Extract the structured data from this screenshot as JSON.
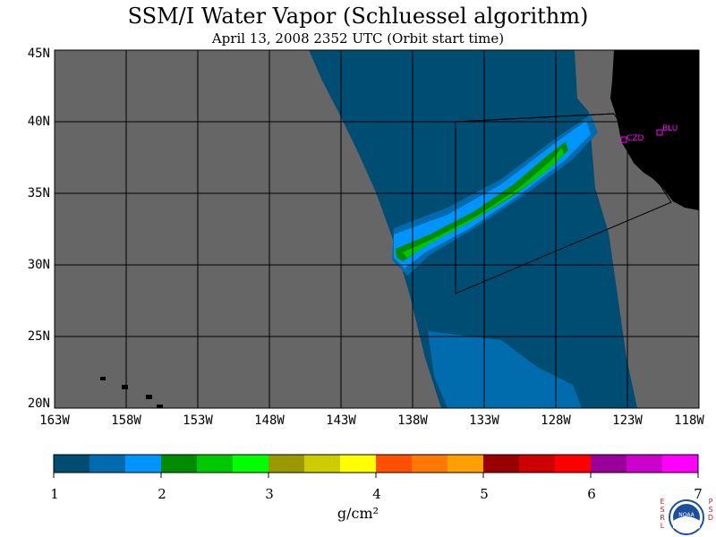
{
  "title": "SSM/I Water Vapor (Schluessel algorithm)",
  "subtitle": "April 13, 2008  2352 UTC  (Orbit start time)",
  "map": {
    "lat_labels": [
      "45N",
      "40N",
      "35N",
      "30N",
      "25N",
      "20N"
    ],
    "lon_labels": [
      "163W",
      "158W",
      "153W",
      "148W",
      "143W",
      "138W",
      "133W",
      "128W",
      "123W",
      "118W"
    ],
    "stations": [
      {
        "label": "CZD"
      },
      {
        "label": "BLU"
      }
    ],
    "colors": {
      "background_gray": "#666666",
      "land": "#000000",
      "station": "#ff00ff"
    }
  },
  "colorbar": {
    "ticks": [
      "1",
      "2",
      "3",
      "4",
      "5",
      "6",
      "7"
    ],
    "unit": "g/cm²",
    "colors": [
      "#004d73",
      "#006bad",
      "#0094ff",
      "#008c00",
      "#00c800",
      "#00ff00",
      "#9a9a00",
      "#cccc00",
      "#ffff00",
      "#ff5000",
      "#ff7800",
      "#ffa000",
      "#990000",
      "#cc0000",
      "#ff0000",
      "#990099",
      "#cc00cc",
      "#ff00ff"
    ]
  },
  "logo": {
    "left_letters": [
      "E",
      "S",
      "R",
      "L"
    ],
    "right_letters": [
      "P",
      "S",
      "D"
    ],
    "inner_text": "NOAA"
  }
}
